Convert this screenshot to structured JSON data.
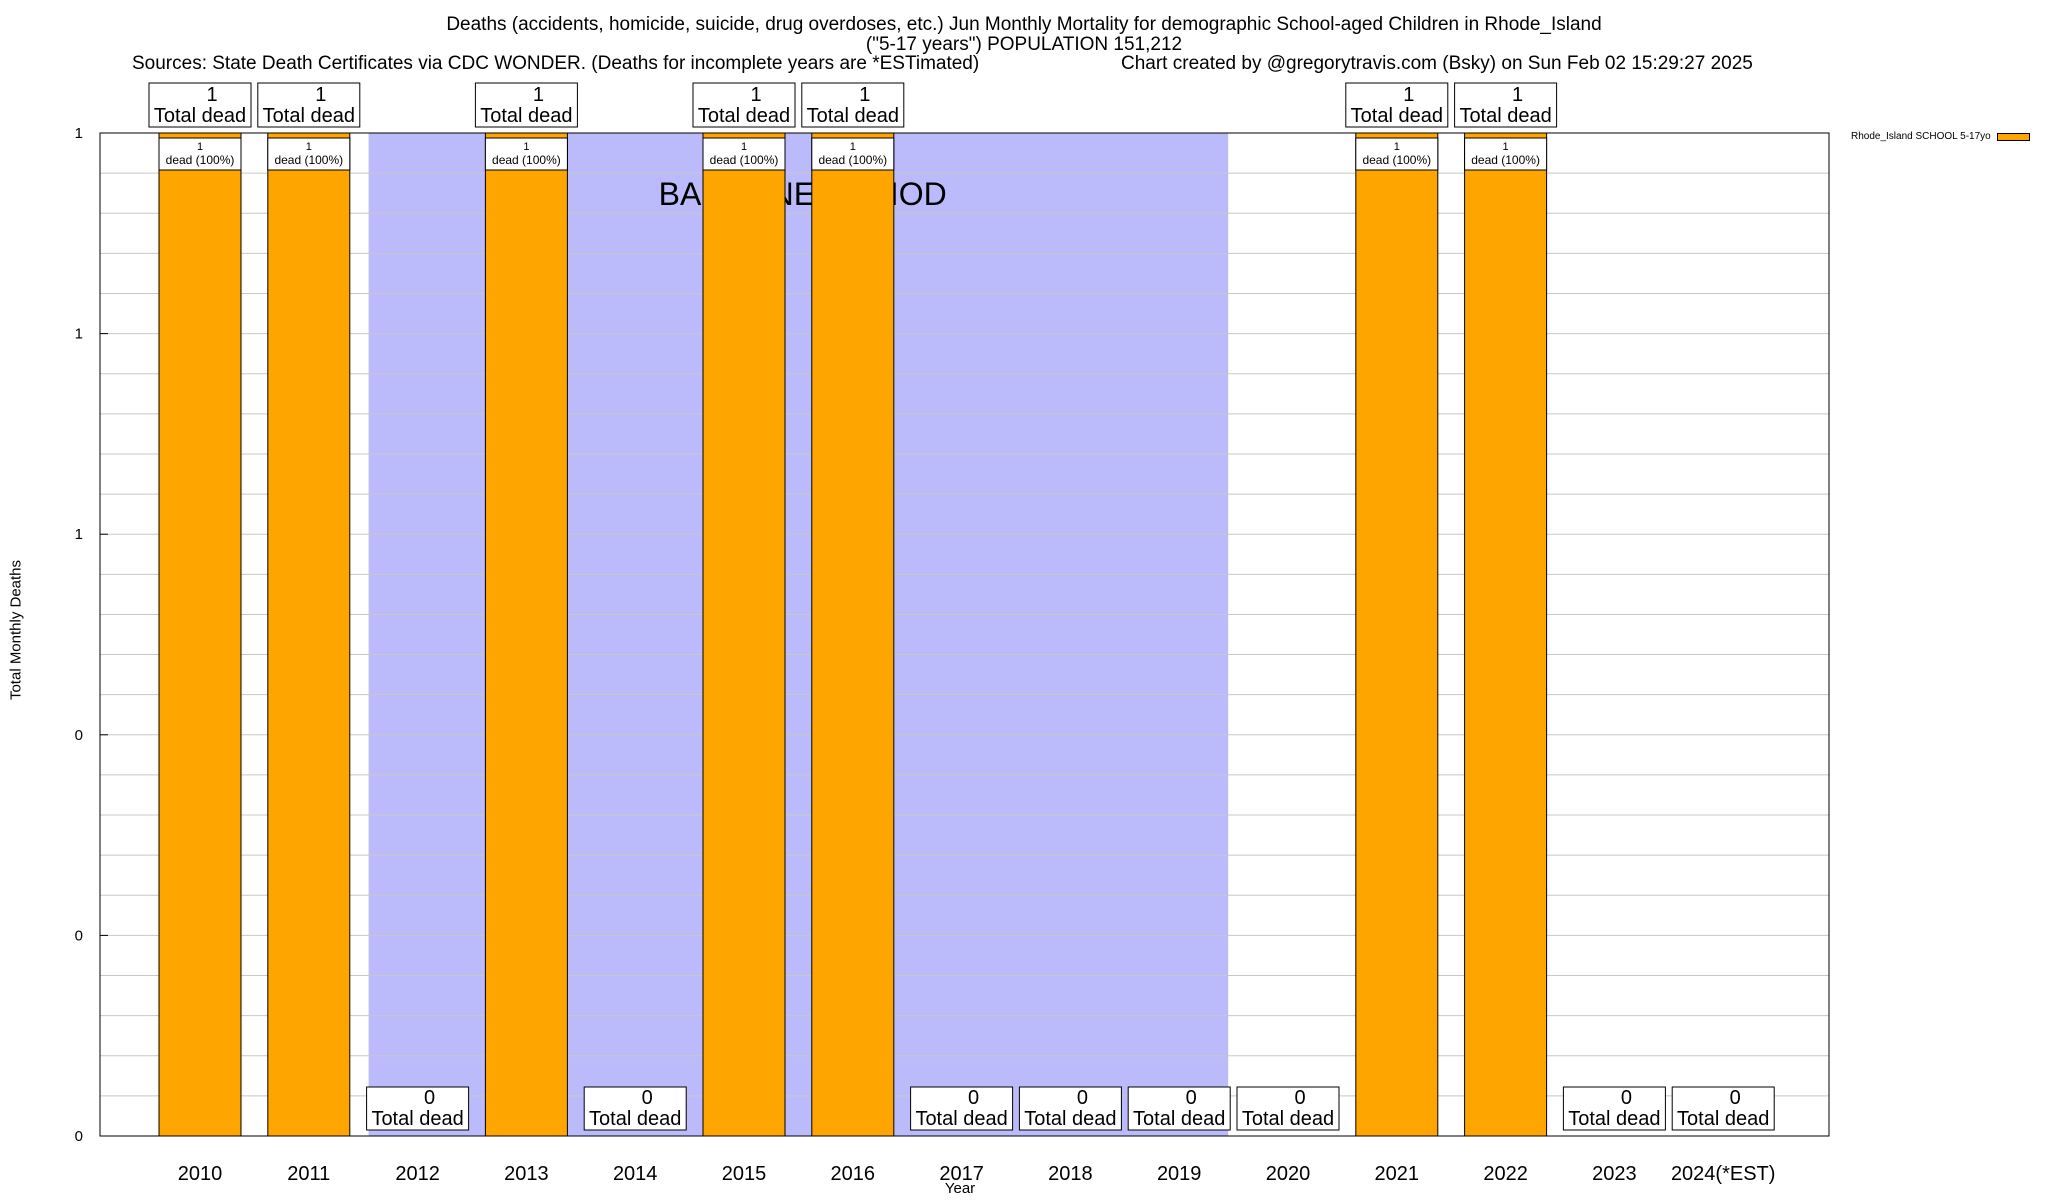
{
  "chart_data": {
    "type": "bar",
    "title_lines": [
      "Deaths (accidents, homicide, suicide, drug overdoses, etc.) Jun Monthly Mortality for demographic School-aged Children in Rhode_Island",
      "(\"5-17 years\") POPULATION 151,212"
    ],
    "sources": "Sources: State Death Certificates via CDC WONDER. (Deaths for incomplete years are *ESTimated)",
    "credit": "Chart created by @gregorytravis.com (Bsky) on Sun Feb 02 15:29:27 2025",
    "xlabel": "Year",
    "ylabel": "Total Monthly Deaths",
    "ylim": [
      0,
      1
    ],
    "y_tick_values": [
      0,
      0.2,
      0.4,
      0.6,
      0.8,
      1
    ],
    "y_tick_labels": [
      "0",
      "0",
      "0",
      "1",
      "1",
      "1"
    ],
    "categories": [
      "2010",
      "2011",
      "2012",
      "2013",
      "2014",
      "2015",
      "2016",
      "2017",
      "2018",
      "2019",
      "2020",
      "2021",
      "2022",
      "2023",
      "2024(*EST)"
    ],
    "series": [
      {
        "name": "Rhode_Island SCHOOL 5-17yo",
        "values": [
          1,
          1,
          0,
          1,
          0,
          1,
          1,
          0,
          0,
          0,
          0,
          1,
          1,
          0,
          0
        ]
      }
    ],
    "total_label_suffix": "Total dead",
    "inner_label_suffix": "dead (100%)",
    "baseline_period": {
      "label": "BASELINE PERIOD",
      "start": "2012",
      "end": "2019"
    },
    "legend_position": "top-right",
    "colors": {
      "bar": "#ffa500",
      "baseline": "#bbbbfb",
      "grid": "#c8c8c8"
    }
  }
}
